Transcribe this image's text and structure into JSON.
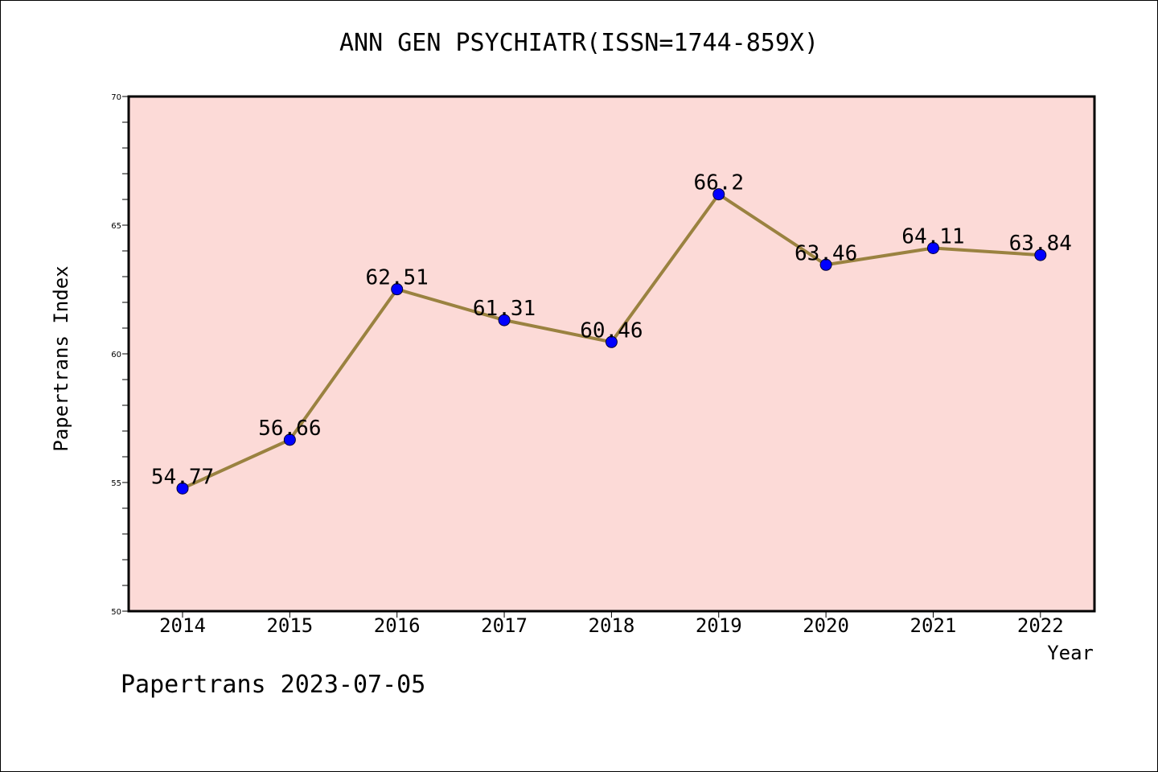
{
  "chart_data": {
    "type": "line",
    "title": "ANN GEN PSYCHIATR(ISSN=1744-859X)",
    "xlabel": "Year",
    "ylabel": "Papertrans Index",
    "x": [
      "2014",
      "2015",
      "2016",
      "2017",
      "2018",
      "2019",
      "2020",
      "2021",
      "2022"
    ],
    "series": [
      {
        "values": [
          54.77,
          56.66,
          62.51,
          61.31,
          60.46,
          66.2,
          63.46,
          64.11,
          63.84
        ],
        "data_labels": [
          "54.77",
          "56.66",
          "62.51",
          "61.31",
          "60.46",
          "66.2",
          "63.46",
          "64.11",
          "63.84"
        ]
      }
    ],
    "ylim": [
      50,
      70
    ],
    "yticks": [
      "50",
      "55",
      "60",
      "65",
      "70"
    ],
    "grid": false,
    "colors": {
      "plot_background": "#FCDAD7",
      "line": "#9A8240",
      "marker": "#0000FF"
    }
  },
  "footer": {
    "text": "Papertrans 2023-07-05"
  }
}
